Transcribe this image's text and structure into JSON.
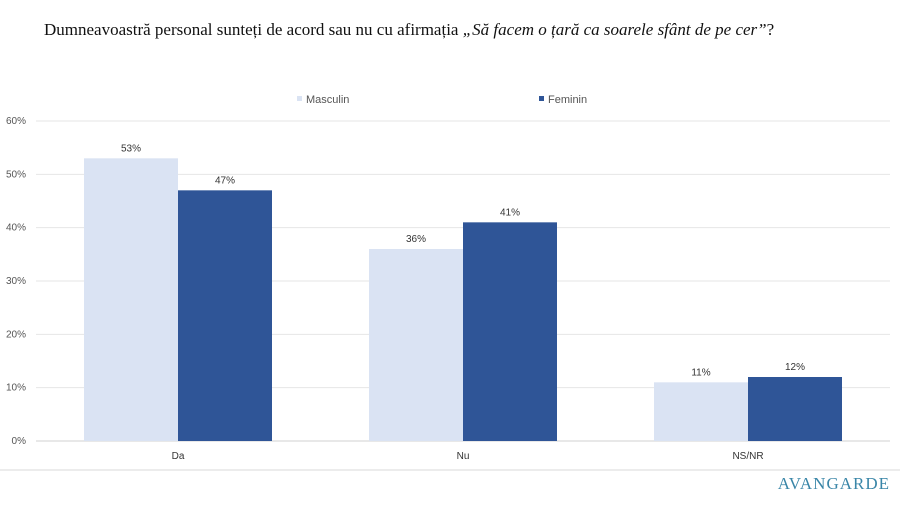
{
  "title_plain": "Dumneavoastră personal sunteți de acord sau nu cu afirmația ",
  "title_italic": "„Să facem o țară ca soarele sfânt de pe cer”",
  "title_end": "?",
  "logo": "AVANGARDE",
  "chart_data": {
    "type": "bar",
    "categories": [
      "Da",
      "Nu",
      "NS/NR"
    ],
    "series": [
      {
        "name": "Masculin",
        "values": [
          53,
          36,
          11
        ],
        "color": "#dae3f3"
      },
      {
        "name": "Feminin",
        "values": [
          47,
          41,
          12
        ],
        "color": "#2f5597"
      }
    ],
    "ylim": [
      0,
      60
    ],
    "yticks": [
      "0%",
      "10%",
      "20%",
      "30%",
      "40%",
      "50%",
      "60%"
    ],
    "value_suffix": "%",
    "grid": true,
    "legend": "top-center"
  }
}
